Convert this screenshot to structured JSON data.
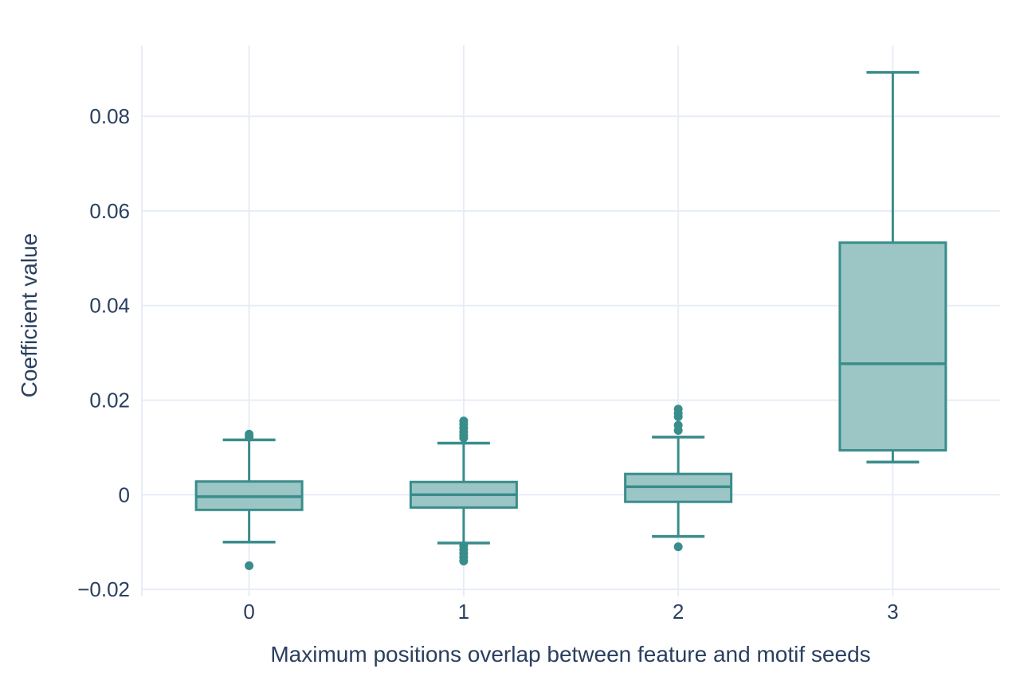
{
  "chart_data": {
    "type": "box",
    "title": "",
    "xlabel": "Maximum positions overlap between feature and motif seeds",
    "ylabel": "Coefficient value",
    "categories": [
      "0",
      "1",
      "2",
      "3"
    ],
    "yticks": [
      0.08,
      0.06,
      0.04,
      0.02,
      0,
      -0.02
    ],
    "ylim": [
      -0.0215,
      0.095
    ],
    "grid": true,
    "legend_position": "none",
    "boxes": [
      {
        "category": "0",
        "whisker_low": -0.01,
        "q1": -0.0032,
        "median": -0.0004,
        "q3": 0.0028,
        "whisker_high": 0.0116,
        "outliers_high": [
          0.0122,
          0.0128
        ],
        "outliers_low": [
          -0.015
        ]
      },
      {
        "category": "1",
        "whisker_low": -0.0102,
        "q1": -0.0027,
        "median": 0.0,
        "q3": 0.0027,
        "whisker_high": 0.0109,
        "outliers_high": [
          0.012,
          0.0126,
          0.0133,
          0.0141,
          0.0149,
          0.0156
        ],
        "outliers_low": [
          -0.0108,
          -0.0116,
          -0.0124,
          -0.0132,
          -0.014
        ]
      },
      {
        "category": "2",
        "whisker_low": -0.0088,
        "q1": -0.0015,
        "median": 0.0017,
        "q3": 0.0044,
        "whisker_high": 0.0122,
        "outliers_high": [
          0.0136,
          0.0147,
          0.0165,
          0.0172,
          0.0181
        ],
        "outliers_low": [
          -0.011
        ]
      },
      {
        "category": "3",
        "whisker_low": 0.0069,
        "q1": 0.0094,
        "median": 0.0277,
        "q3": 0.0533,
        "whisker_high": 0.0893,
        "outliers_high": [],
        "outliers_low": []
      }
    ],
    "colors": {
      "box_line": "#398d8b",
      "box_fill": "#9cc6c5",
      "grid": "#e7edf7",
      "text": "#2a3f5f",
      "background": "#ffffff"
    }
  }
}
